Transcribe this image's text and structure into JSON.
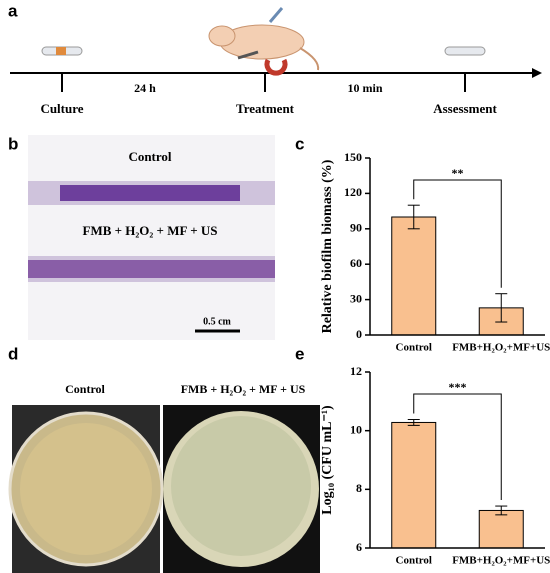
{
  "timeline": {
    "label": "a",
    "steps": [
      "Culture",
      "Treatment",
      "Assessment"
    ],
    "intervals": [
      "24 h",
      "10 min"
    ]
  },
  "panel_b": {
    "label": "b",
    "top_text": "Control",
    "bottom_text": "FMB + H₂O₂ + MF + US",
    "scale_bar": "0.5 cm"
  },
  "panel_d": {
    "label": "d",
    "left_text": "Control",
    "right_text": "FMB + H₂O₂ + MF + US"
  },
  "chart_data": [
    {
      "type": "bar",
      "label": "c",
      "ylabel": "Relative biofilm biomass (%)",
      "categories": [
        "Control",
        "FMB+H₂O₂+MF+US"
      ],
      "values": [
        100,
        23
      ],
      "errors": [
        10,
        12
      ],
      "color": "#f9c08f",
      "ylim": [
        0,
        150
      ],
      "yticks": [
        0,
        30,
        60,
        90,
        120,
        150
      ],
      "significance": "**"
    },
    {
      "type": "bar",
      "label": "e",
      "ylabel": "Log₁₀ (CFU mL⁻¹)",
      "categories": [
        "Control",
        "FMB+H₂O₂+MF+US"
      ],
      "values": [
        10.28,
        7.28
      ],
      "errors": [
        0.1,
        0.15
      ],
      "color": "#f9c08f",
      "ylim": [
        6,
        12
      ],
      "yticks": [
        6,
        8,
        10,
        12
      ],
      "significance": "***"
    }
  ]
}
